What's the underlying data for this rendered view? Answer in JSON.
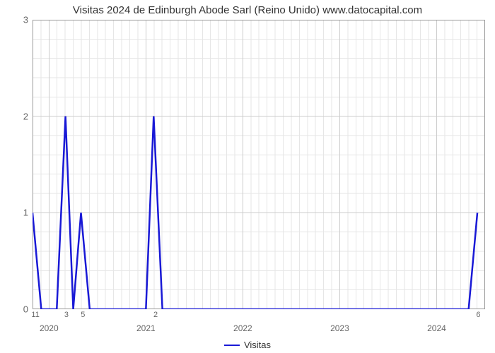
{
  "chart": {
    "type": "line",
    "title": "Visitas 2024 de Edinburgh Abode Sarl (Reino Unido) www.datocapital.com",
    "title_fontsize": 15,
    "title_color": "#333333",
    "background_color": "#ffffff",
    "plot_border_color": "#999999",
    "plot_border_width": 1,
    "major_grid_color": "#cccccc",
    "minor_grid_color": "#e6e6e6",
    "axis_label_color": "#666666",
    "x_axis": {
      "min": 2019.83,
      "max": 2024.5,
      "major_ticks": [
        2020,
        2021,
        2022,
        2023,
        2024
      ],
      "minor_labels": [
        {
          "x": 2019.86,
          "label": "11"
        },
        {
          "x": 2020.18,
          "label": "3"
        },
        {
          "x": 2020.35,
          "label": "5"
        },
        {
          "x": 2021.1,
          "label": "2"
        },
        {
          "x": 2024.43,
          "label": "6"
        }
      ],
      "label_fontsize_major": 12,
      "label_fontsize_minor": 11
    },
    "y_axis": {
      "min": 0,
      "max": 3,
      "ticks": [
        0,
        1,
        2,
        3
      ],
      "minor_step": 0.2,
      "label_fontsize": 13
    },
    "series": {
      "name": "Visitas",
      "color": "#1919d6",
      "line_width": 2.5,
      "points": [
        {
          "x": 2019.83,
          "y": 1.0
        },
        {
          "x": 2019.92,
          "y": 0.0
        },
        {
          "x": 2020.08,
          "y": 0.0
        },
        {
          "x": 2020.17,
          "y": 2.0
        },
        {
          "x": 2020.25,
          "y": 0.0
        },
        {
          "x": 2020.33,
          "y": 1.0
        },
        {
          "x": 2020.42,
          "y": 0.0
        },
        {
          "x": 2021.0,
          "y": 0.0
        },
        {
          "x": 2021.08,
          "y": 2.0
        },
        {
          "x": 2021.17,
          "y": 0.0
        },
        {
          "x": 2024.33,
          "y": 0.0
        },
        {
          "x": 2024.42,
          "y": 1.0
        }
      ]
    },
    "legend": {
      "label": "Visitas",
      "position": "bottom-center",
      "fontsize": 13
    }
  }
}
